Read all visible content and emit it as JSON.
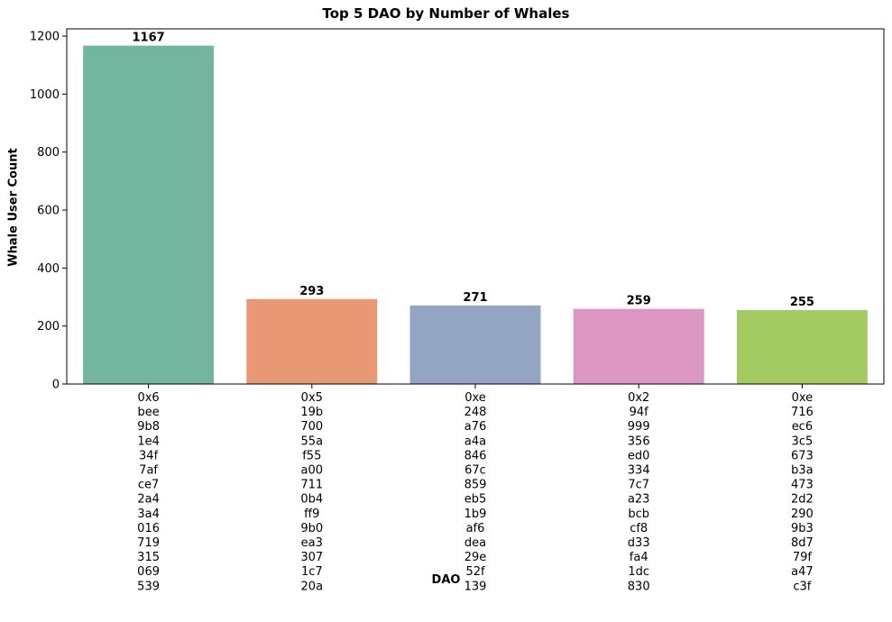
{
  "chart_data": {
    "type": "bar",
    "title": "Top 5 DAO by Number of Whales",
    "xlabel": "DAO",
    "ylabel": "Whale User Count",
    "ylim": [
      0,
      1225
    ],
    "yticks": [
      0,
      200,
      400,
      600,
      800,
      1000,
      1200
    ],
    "grid": false,
    "categories": [
      "0x6bee9b81e434f7afce72a43a4016719315069539",
      "0x519b70055af55a007110b4ff99b0ea33071c720a",
      "0xe248a76a4a84667c859eb51b9af6dea29e52f139",
      "0x294f999356ed03347c7a23bcbcf8d33fa41dc830",
      "0xe716ec63c5673b3a4732d22909b38d779fa47c3f"
    ],
    "category_label_lines": [
      [
        "0x6",
        "bee",
        "9b8",
        "1e4",
        "34f",
        "7af",
        "ce7",
        "2a4",
        "3a4",
        "016",
        "719",
        "315",
        "069",
        "539"
      ],
      [
        "0x5",
        "19b",
        "700",
        "55a",
        "f55",
        "a00",
        "711",
        "0b4",
        "ff9",
        "9b0",
        "ea3",
        "307",
        "1c7",
        "20a"
      ],
      [
        "0xe",
        "248",
        "a76",
        "a4a",
        "846",
        "67c",
        "859",
        "eb5",
        "1b9",
        "af6",
        "dea",
        "29e",
        "52f",
        "139"
      ],
      [
        "0x2",
        "94f",
        "999",
        "356",
        "ed0",
        "334",
        "7c7",
        "a23",
        "bcb",
        "cf8",
        "d33",
        "fa4",
        "1dc",
        "830"
      ],
      [
        "0xe",
        "716",
        "ec6",
        "3c5",
        "673",
        "b3a",
        "473",
        "2d2",
        "290",
        "9b3",
        "8d7",
        "79f",
        "a47",
        "c3f"
      ]
    ],
    "values": [
      1167,
      293,
      271,
      259,
      255
    ],
    "data_labels": [
      "1167",
      "293",
      "271",
      "259",
      "255"
    ],
    "colors": [
      "#74b5a0",
      "#e89874",
      "#94a4c3",
      "#dc96c2",
      "#a4ca62"
    ]
  }
}
